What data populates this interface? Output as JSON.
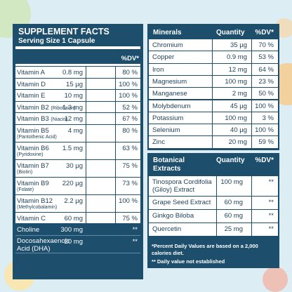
{
  "supplement_facts": {
    "title": "SUPPLEMENT FACTS",
    "serving_size": "Serving Size 1 Capsule",
    "dv_header": "%DV*",
    "rows": [
      {
        "name": "Vitamin A",
        "amount": "0.8 mg",
        "dv": "80 %"
      },
      {
        "name": "Vitamin D",
        "amount": "15 µg",
        "dv": "100 %"
      },
      {
        "name": "Vitamin E",
        "amount": "10 mg",
        "dv": "100 %"
      },
      {
        "name": "Vitamin B2",
        "note": "(Riboflavin)",
        "amount": "1.3 mg",
        "dv": "52 %"
      },
      {
        "name": "Vitamin B3",
        "note": "(Niacin)",
        "amount": "12 mg",
        "dv": "67 %"
      },
      {
        "name": "Vitamin B5",
        "note": "(Pantothenic Acid)",
        "amount": "4 mg",
        "dv": "80 %"
      },
      {
        "name": "Vitamin B6",
        "note": "(Pyridoxine)",
        "amount": "1.5 mg",
        "dv": "63 %"
      },
      {
        "name": "Vitamin B7",
        "note": "(Biotin)",
        "amount": "30 µg",
        "dv": "75 %"
      },
      {
        "name": "Vitamin B9",
        "note": "(Folate)",
        "amount": "220 µg",
        "dv": "73 %"
      },
      {
        "name": "Vitamin B12",
        "note": "(Methylcobalamin)",
        "amount": "2.2 µg",
        "dv": "100 %"
      },
      {
        "name": "Vitamin C",
        "amount": "60 mg",
        "dv": "75 %"
      },
      {
        "name": "Choline",
        "amount": "300 mg",
        "dv": "**"
      },
      {
        "name": "Docosahexaenoic Acid (DHA)",
        "amount": "20 mg",
        "dv": "**"
      }
    ]
  },
  "minerals": {
    "title": "Minerals",
    "quantity_header": "Quantity",
    "dv_header": "%DV*",
    "rows": [
      {
        "name": "Chromium",
        "amount": "35 µg",
        "dv": "70 %"
      },
      {
        "name": "Copper",
        "amount": "0.9 mg",
        "dv": "53 %"
      },
      {
        "name": "Iron",
        "amount": "12 mg",
        "dv": "64 %"
      },
      {
        "name": "Magnesium",
        "amount": "100 mg",
        "dv": "23 %"
      },
      {
        "name": "Manganese",
        "amount": "2 mg",
        "dv": "50 %"
      },
      {
        "name": "Molybdenum",
        "amount": "45 µg",
        "dv": "100 %"
      },
      {
        "name": "Potassium",
        "amount": "100 mg",
        "dv": "3 %"
      },
      {
        "name": "Selenium",
        "amount": "40 µg",
        "dv": "100 %"
      },
      {
        "name": "Zinc",
        "amount": "20 mg",
        "dv": "59 %"
      }
    ]
  },
  "botanical_extracts": {
    "title": "Botanical Extracts",
    "quantity_header": "Quantity",
    "dv_header": "%DV*",
    "rows": [
      {
        "name": "Tinospora Cordifolia (Giloy) Extract",
        "amount": "100 mg",
        "dv": "**"
      },
      {
        "name": "Grape Seed Extract",
        "amount": "60 mg",
        "dv": "**"
      },
      {
        "name": "Ginkgo Biloba",
        "amount": "60 mg",
        "dv": "**"
      },
      {
        "name": "Quercetin",
        "amount": "25 mg",
        "dv": "**"
      }
    ],
    "footnotes": [
      "*Percent Daily Values are based on a 2,000 calories diet.",
      "** Daily value not established"
    ]
  }
}
